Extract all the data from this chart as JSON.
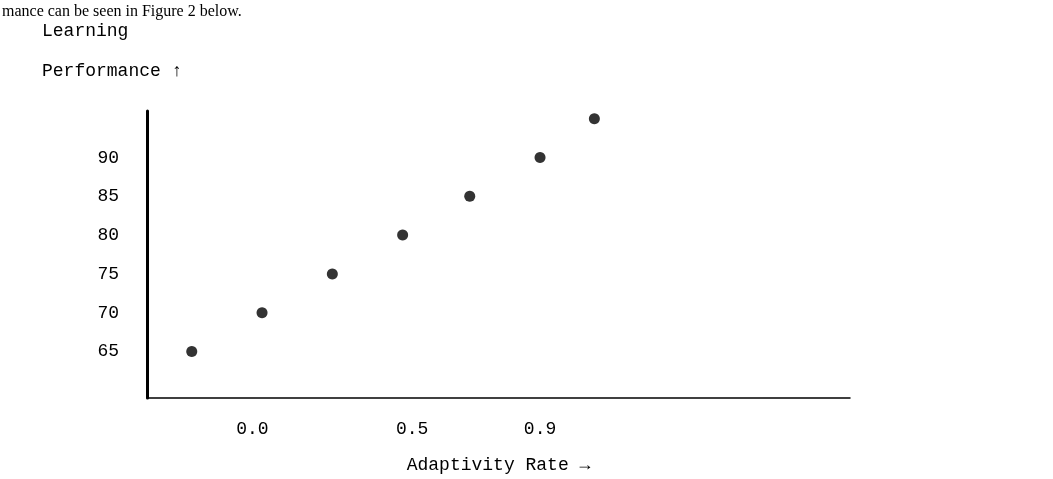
{
  "chart_data": {
    "type": "scatter",
    "xlabel": "Adaptivity Rate →",
    "ylabel": "Learning\nPerformance ↑",
    "annotations": [
      "mance can be seen in Figure 2 below."
    ],
    "x": [
      -0.19,
      0.03,
      0.25,
      0.47,
      0.68,
      0.9,
      1.07
    ],
    "values": [
      65,
      70,
      75,
      80,
      85,
      90,
      95
    ],
    "color": "#000000",
    "marker": "circle",
    "xlim": [
      -0.33,
      1.87
    ],
    "xticks": [
      {
        "value": 0,
        "label": "0.0"
      },
      0.5,
      0.9
    ],
    "ylim": [
      59,
      96
    ],
    "yticks": [
      65,
      70,
      75,
      80,
      85,
      90
    ]
  }
}
